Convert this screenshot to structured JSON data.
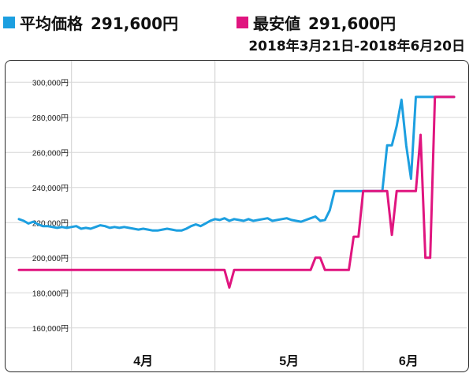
{
  "legend": {
    "avg": {
      "label": "平均価格",
      "value": "291,600円",
      "color": "#1c9fe0"
    },
    "min": {
      "label": "最安値",
      "value": "291,600円",
      "color": "#e0157f"
    }
  },
  "period": "2018年3月21日-2018年6月20日",
  "chart_data": {
    "type": "line",
    "title": "",
    "xlabel": "",
    "ylabel": "",
    "ylim": [
      150000,
      310000
    ],
    "yticks": [
      160000,
      180000,
      200000,
      220000,
      240000,
      260000,
      280000,
      300000
    ],
    "ytick_labels": [
      "160,000円",
      "180,000円",
      "200,000円",
      "220,000円",
      "240,000円",
      "260,000円",
      "280,000円",
      "300,000円"
    ],
    "xticks": [
      "4月",
      "5月",
      "6月"
    ],
    "grid": true,
    "x": [
      "2018-03-21",
      "2018-03-22",
      "2018-03-23",
      "2018-03-24",
      "2018-03-25",
      "2018-03-26",
      "2018-03-27",
      "2018-03-28",
      "2018-03-29",
      "2018-03-30",
      "2018-03-31",
      "2018-04-01",
      "2018-04-02",
      "2018-04-03",
      "2018-04-04",
      "2018-04-05",
      "2018-04-06",
      "2018-04-07",
      "2018-04-08",
      "2018-04-09",
      "2018-04-10",
      "2018-04-11",
      "2018-04-12",
      "2018-04-13",
      "2018-04-14",
      "2018-04-15",
      "2018-04-16",
      "2018-04-17",
      "2018-04-18",
      "2018-04-19",
      "2018-04-20",
      "2018-04-21",
      "2018-04-22",
      "2018-04-23",
      "2018-04-24",
      "2018-04-25",
      "2018-04-26",
      "2018-04-27",
      "2018-04-28",
      "2018-04-29",
      "2018-04-30",
      "2018-05-01",
      "2018-05-02",
      "2018-05-03",
      "2018-05-04",
      "2018-05-05",
      "2018-05-06",
      "2018-05-07",
      "2018-05-08",
      "2018-05-09",
      "2018-05-10",
      "2018-05-11",
      "2018-05-12",
      "2018-05-13",
      "2018-05-14",
      "2018-05-15",
      "2018-05-16",
      "2018-05-17",
      "2018-05-18",
      "2018-05-19",
      "2018-05-20",
      "2018-05-21",
      "2018-05-22",
      "2018-05-23",
      "2018-05-24",
      "2018-05-25",
      "2018-05-26",
      "2018-05-27",
      "2018-05-28",
      "2018-05-29",
      "2018-05-30",
      "2018-05-31",
      "2018-06-01",
      "2018-06-02",
      "2018-06-03",
      "2018-06-04",
      "2018-06-05",
      "2018-06-06",
      "2018-06-07",
      "2018-06-08",
      "2018-06-09",
      "2018-06-10",
      "2018-06-11",
      "2018-06-12",
      "2018-06-13",
      "2018-06-14",
      "2018-06-15",
      "2018-06-16",
      "2018-06-17",
      "2018-06-18",
      "2018-06-19",
      "2018-06-20"
    ],
    "series": [
      {
        "name": "平均価格",
        "color": "#1c9fe0",
        "values": [
          222000,
          221000,
          219500,
          220500,
          219000,
          218000,
          218000,
          217500,
          217000,
          217500,
          217000,
          217500,
          218000,
          216500,
          217000,
          216500,
          217500,
          218500,
          218000,
          217000,
          217500,
          217000,
          217500,
          217000,
          216500,
          216000,
          216500,
          216000,
          215500,
          215500,
          216000,
          216500,
          216000,
          215500,
          215500,
          216500,
          218000,
          219000,
          218000,
          219500,
          221000,
          222000,
          221500,
          222500,
          221000,
          222000,
          221500,
          221000,
          222000,
          221000,
          221500,
          222000,
          222500,
          221000,
          221500,
          222000,
          222500,
          221500,
          221000,
          220500,
          221500,
          222500,
          223500,
          221000,
          221500,
          227000,
          238000,
          238000,
          238000,
          238000,
          238000,
          238000,
          238000,
          238000,
          238000,
          238000,
          238000,
          264000,
          264000,
          275000,
          290000,
          264000,
          245000,
          291600,
          291600,
          291600,
          291600,
          291600,
          291600,
          291600,
          291600,
          291600
        ]
      },
      {
        "name": "最安値",
        "color": "#e0157f",
        "values": [
          193000,
          193000,
          193000,
          193000,
          193000,
          193000,
          193000,
          193000,
          193000,
          193000,
          193000,
          193000,
          193000,
          193000,
          193000,
          193000,
          193000,
          193000,
          193000,
          193000,
          193000,
          193000,
          193000,
          193000,
          193000,
          193000,
          193000,
          193000,
          193000,
          193000,
          193000,
          193000,
          193000,
          193000,
          193000,
          193000,
          193000,
          193000,
          193000,
          193000,
          193000,
          193000,
          193000,
          193000,
          183000,
          193000,
          193000,
          193000,
          193000,
          193000,
          193000,
          193000,
          193000,
          193000,
          193000,
          193000,
          193000,
          193000,
          193000,
          193000,
          193000,
          193000,
          200000,
          200000,
          193000,
          193000,
          193000,
          193000,
          193000,
          193000,
          212000,
          212000,
          238000,
          238000,
          238000,
          238000,
          238000,
          238000,
          213000,
          238000,
          238000,
          238000,
          238000,
          238000,
          270000,
          200000,
          200000,
          291600,
          291600,
          291600,
          291600,
          291600
        ]
      }
    ]
  }
}
